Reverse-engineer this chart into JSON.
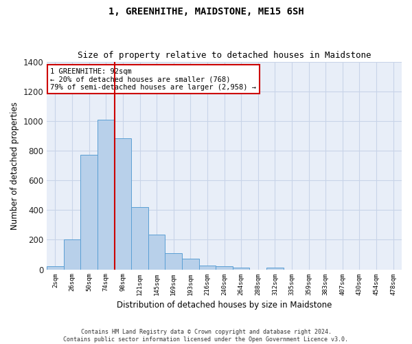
{
  "title": "1, GREENHITHE, MAIDSTONE, ME15 6SH",
  "subtitle": "Size of property relative to detached houses in Maidstone",
  "xlabel": "Distribution of detached houses by size in Maidstone",
  "ylabel": "Number of detached properties",
  "footer_line1": "Contains HM Land Registry data © Crown copyright and database right 2024.",
  "footer_line2": "Contains public sector information licensed under the Open Government Licence v3.0.",
  "bar_labels": [
    "2sqm",
    "26sqm",
    "50sqm",
    "74sqm",
    "98sqm",
    "121sqm",
    "145sqm",
    "169sqm",
    "193sqm",
    "216sqm",
    "240sqm",
    "264sqm",
    "288sqm",
    "312sqm",
    "335sqm",
    "359sqm",
    "383sqm",
    "407sqm",
    "430sqm",
    "454sqm",
    "478sqm"
  ],
  "bar_values": [
    20,
    200,
    770,
    1010,
    885,
    420,
    235,
    110,
    70,
    25,
    20,
    10,
    0,
    10,
    0,
    0,
    0,
    0,
    0,
    0,
    0
  ],
  "bar_color": "#b8d0ea",
  "bar_edge_color": "#5a9fd4",
  "grid_color": "#c8d4e8",
  "background_color": "#e8eef8",
  "vline_color": "#cc0000",
  "vline_index": 3.5,
  "annotation_text": "1 GREENHITHE: 92sqm\n← 20% of detached houses are smaller (768)\n79% of semi-detached houses are larger (2,958) →",
  "annotation_box_color": "#ffffff",
  "annotation_border_color": "#cc0000",
  "ylim": [
    0,
    1400
  ],
  "yticks": [
    0,
    200,
    400,
    600,
    800,
    1000,
    1200,
    1400
  ]
}
